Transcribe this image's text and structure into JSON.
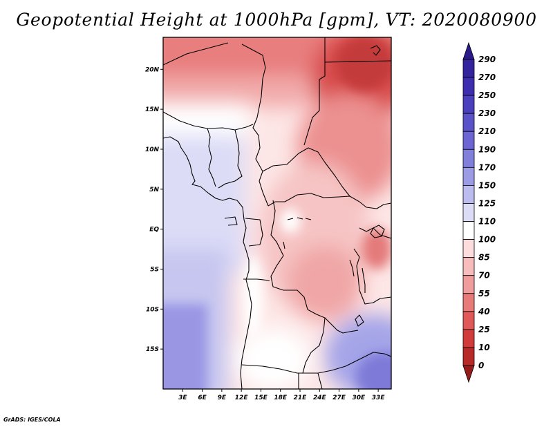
{
  "title": "Geopotential Height at 1000hPa [gpm], VT: 2020080900",
  "footer": "GrADS: IGES/COLA",
  "map": {
    "variable": "Geopotential Height",
    "level": "1000hPa",
    "units": "gpm",
    "valid_time": "2020080900",
    "lon_range": [
      0,
      35
    ],
    "lat_range": [
      -20,
      24
    ],
    "lon_ticks": [
      "3E",
      "6E",
      "9E",
      "12E",
      "15E",
      "18E",
      "21E",
      "24E",
      "27E",
      "30E",
      "33E"
    ],
    "lon_tick_values": [
      3,
      6,
      9,
      12,
      15,
      18,
      21,
      24,
      27,
      30,
      33
    ],
    "lat_ticks": [
      "20N",
      "15N",
      "10N",
      "5N",
      "EQ",
      "5S",
      "10S",
      "15S"
    ],
    "lat_tick_values": [
      20,
      15,
      10,
      5,
      0,
      -5,
      -10,
      -15
    ]
  },
  "colorbar": {
    "labels": [
      "290",
      "270",
      "250",
      "230",
      "210",
      "190",
      "170",
      "150",
      "125",
      "110",
      "100",
      "85",
      "70",
      "55",
      "40",
      "25",
      "10",
      "0"
    ],
    "colors": [
      "#2a1a8a",
      "#33239c",
      "#3c2eae",
      "#4a3fbc",
      "#5a52c8",
      "#6b66d3",
      "#8080dc",
      "#9c9ce6",
      "#bcbcef",
      "#dcdcf7",
      "#ffffff",
      "#fcdcdc",
      "#f7bcbc",
      "#f09c9c",
      "#e87a7a",
      "#e05858",
      "#d23b3b",
      "#b82a2a",
      "#961c1c"
    ]
  }
}
